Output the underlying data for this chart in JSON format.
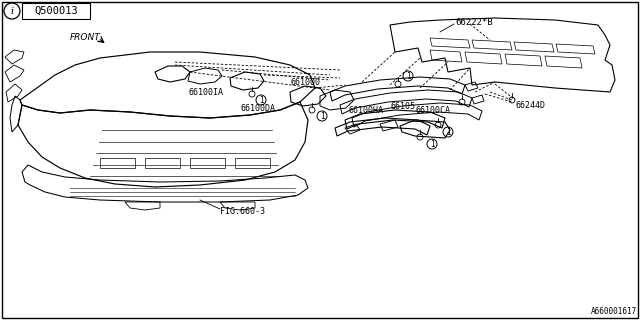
{
  "bg_color": "#ffffff",
  "border_color": "#000000",
  "ref_code": "Q500013",
  "footer_code": "A660001617",
  "labels": {
    "front": "FRONT",
    "p66222B": "66222*B",
    "p66100IA": "66100IA",
    "p66100DA": "66100DA",
    "p661000": "661000",
    "pFIG": "FIG.660-3",
    "p66100HA": "66100HA",
    "p66100CA": "66100CA",
    "p66105": "66105",
    "p66244D": "66244D"
  },
  "fs": 6.0
}
